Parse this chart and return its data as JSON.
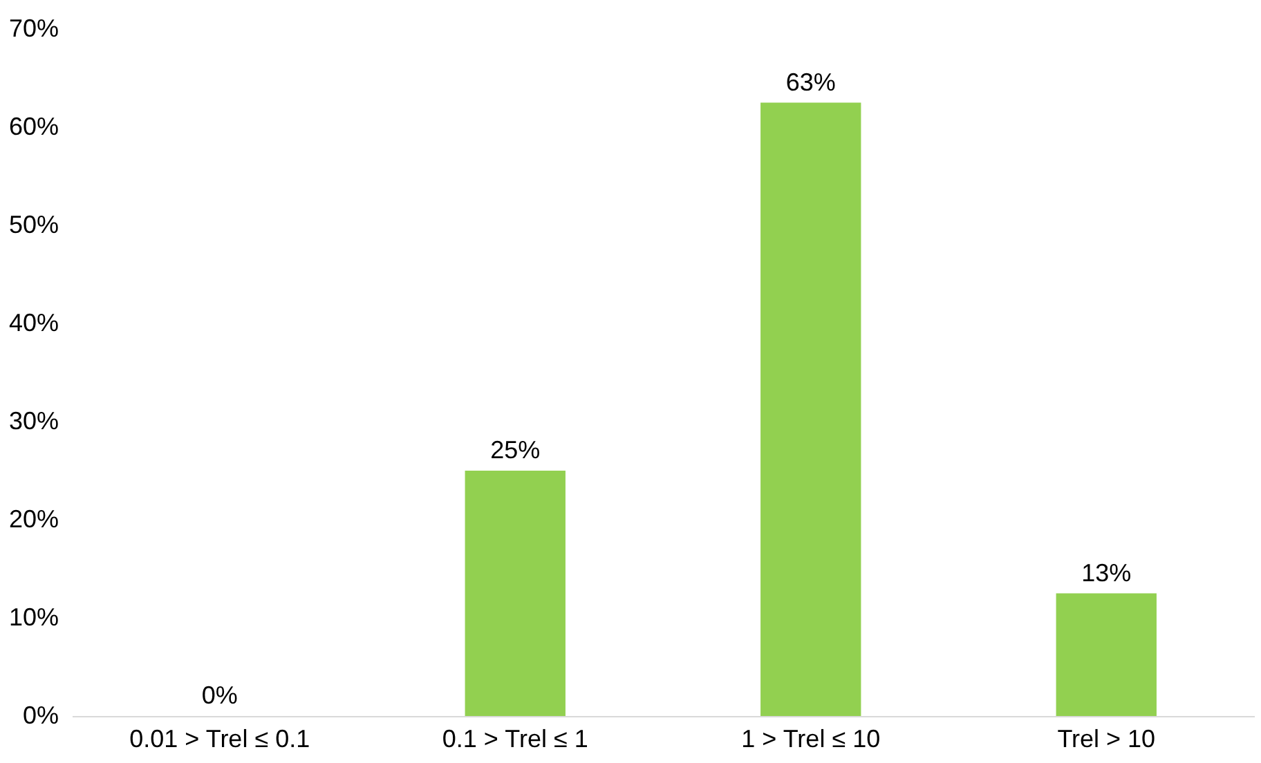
{
  "chart_data": {
    "type": "bar",
    "categories": [
      "0.01 > Trel ≤ 0.1",
      "0.1 > Trel ≤ 1",
      "1 > Trel ≤ 10",
      "Trel > 10"
    ],
    "values": [
      0,
      25,
      62.5,
      12.5
    ],
    "value_labels": [
      "0%",
      "25%",
      "63%",
      "13%"
    ],
    "color": "#92d050",
    "ylim": [
      0,
      70
    ],
    "yticks": [
      {
        "value": 0,
        "label": "0%"
      },
      {
        "value": 10,
        "label": "10%"
      },
      {
        "value": 20,
        "label": "20%"
      },
      {
        "value": 30,
        "label": "30%"
      },
      {
        "value": 40,
        "label": "40%"
      },
      {
        "value": 50,
        "label": "50%"
      },
      {
        "value": 60,
        "label": "60%"
      },
      {
        "value": 70,
        "label": "70%"
      }
    ],
    "grid": false
  }
}
